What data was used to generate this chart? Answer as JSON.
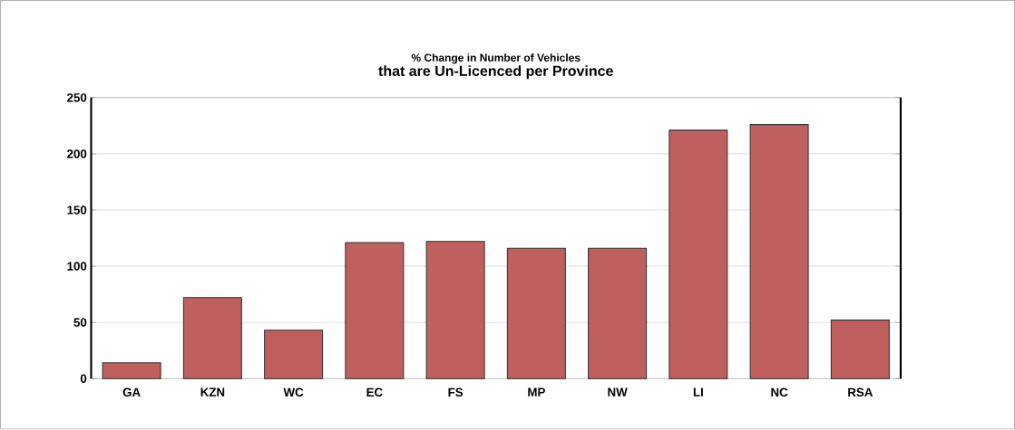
{
  "chart_data": {
    "type": "bar",
    "title": "% Change in Number of Vehicles",
    "subtitle": "that are Un-Licenced per Province",
    "categories": [
      "GA",
      "KZN",
      "WC",
      "EC",
      "FS",
      "MP",
      "NW",
      "LI",
      "NC",
      "RSA"
    ],
    "values": [
      14,
      72,
      43,
      121,
      122,
      116,
      116,
      221,
      226,
      52
    ],
    "color": "#c0605e",
    "ylim": [
      0,
      250
    ],
    "yticks": [
      0,
      50,
      100,
      150,
      200,
      250
    ],
    "grid": "y"
  }
}
